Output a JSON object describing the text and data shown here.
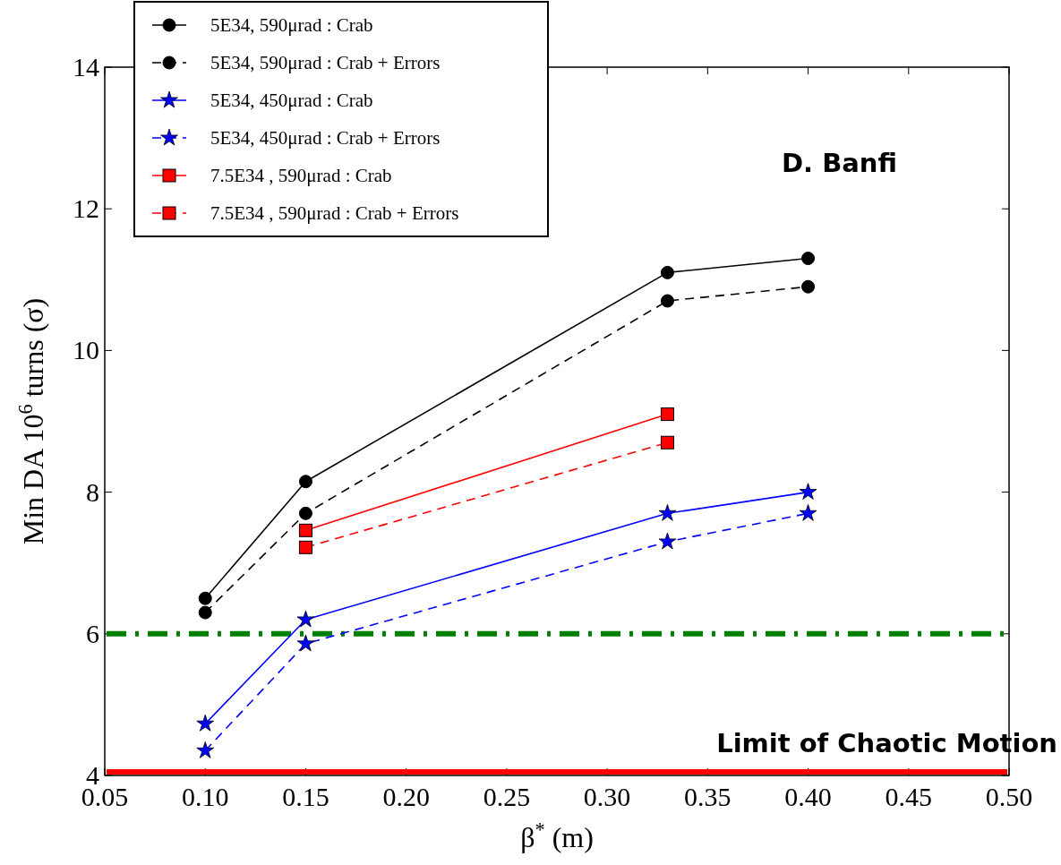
{
  "chart_data": {
    "type": "line",
    "xlabel": "β$^{*}$ (m)",
    "ylabel": "Min DA 10$^{6}$  turns (σ)",
    "xlim": [
      0.05,
      0.5
    ],
    "xticks": [
      {
        "value": 0.05,
        "label": "0.05"
      },
      {
        "value": 0.1,
        "label": "0.10"
      },
      {
        "value": 0.15,
        "label": "0.15"
      },
      {
        "value": 0.2,
        "label": "0.20"
      },
      {
        "value": 0.25,
        "label": "0.25"
      },
      {
        "value": 0.3,
        "label": "0.30"
      },
      {
        "value": 0.35,
        "label": "0.35"
      },
      {
        "value": 0.4,
        "label": "0.40"
      },
      {
        "value": 0.45,
        "label": "0.45"
      },
      {
        "value": 0.5,
        "label": "0.50"
      }
    ],
    "ylim": [
      4,
      14
    ],
    "yticks": [
      4,
      6,
      8,
      10,
      12,
      14
    ],
    "grid": false,
    "legend": "top left",
    "series": [
      {
        "name": "5E34, 590μrad : Crab",
        "color": "#000000",
        "marker": "circle",
        "line_style": "solid",
        "x": [
          0.1,
          0.15,
          0.33,
          0.4
        ],
        "values": [
          6.5,
          8.15,
          11.1,
          11.3
        ]
      },
      {
        "name": "5E34, 590μrad : Crab + Errors",
        "color": "#000000",
        "marker": "circle",
        "line_style": "dashed",
        "x": [
          0.1,
          0.15,
          0.33,
          0.4
        ],
        "values": [
          6.3,
          7.7,
          10.7,
          10.9
        ]
      },
      {
        "name": "5E34, 450μrad : Crab",
        "color": "#0000ff",
        "marker": "star",
        "line_style": "solid",
        "x": [
          0.1,
          0.15,
          0.33,
          0.4
        ],
        "values": [
          4.73,
          6.2,
          7.7,
          8.0
        ]
      },
      {
        "name": "5E34, 450μrad : Crab + Errors",
        "color": "#0000ff",
        "marker": "star",
        "line_style": "dashed",
        "x": [
          0.1,
          0.15,
          0.33,
          0.4
        ],
        "values": [
          4.35,
          5.86,
          7.3,
          7.7
        ]
      },
      {
        "name": "7.5E34 , 590μrad : Crab",
        "color": "#ff0000",
        "marker": "square",
        "line_style": "solid",
        "x": [
          0.15,
          0.33
        ],
        "values": [
          7.46,
          9.1
        ]
      },
      {
        "name": "7.5E34 , 590μrad : Crab + Errors",
        "color": "#ff0000",
        "marker": "square",
        "line_style": "dashed",
        "x": [
          0.15,
          0.33
        ],
        "values": [
          7.22,
          8.7
        ]
      }
    ],
    "ref_lines": [
      {
        "axis": "y",
        "value": 6,
        "label": null,
        "color": "#008000",
        "line_style": "dashdot"
      },
      {
        "axis": "y",
        "value": 4.05,
        "label": "Limit of Chaotic Motion",
        "color": "#ff0000",
        "line_style": "solid"
      }
    ],
    "annotations": [
      "D. Banfi"
    ]
  }
}
